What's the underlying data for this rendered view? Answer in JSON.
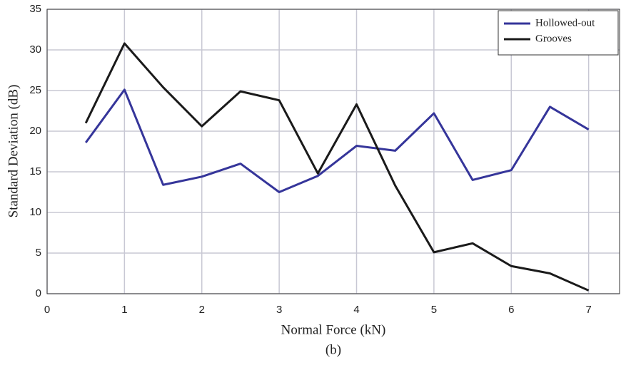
{
  "chart_data": {
    "type": "line",
    "x_label": "Normal Force (kN)",
    "y_label": "Standard Deviation (dB)",
    "caption": "(b)",
    "x": [
      0.5,
      1,
      1.5,
      2,
      2.5,
      3,
      3.5,
      4,
      4.5,
      5,
      5.5,
      6,
      6.5,
      7
    ],
    "series": [
      {
        "name": "Hollowed-out",
        "color": "#35359a",
        "values": [
          18.6,
          25.1,
          13.4,
          14.4,
          16.0,
          12.5,
          14.5,
          18.2,
          17.6,
          22.2,
          14.0,
          15.2,
          23.0,
          20.2
        ]
      },
      {
        "name": "Grooves",
        "color": "#1a1a1a",
        "values": [
          21.0,
          30.8,
          25.4,
          20.6,
          24.9,
          23.8,
          14.8,
          23.3,
          13.3,
          5.1,
          6.2,
          3.4,
          2.5,
          0.4
        ]
      }
    ],
    "xlim": [
      0,
      7.4
    ],
    "ylim": [
      0,
      35
    ],
    "xticks": [
      0,
      1,
      2,
      3,
      4,
      5,
      6,
      7
    ],
    "yticks": [
      0,
      5,
      10,
      15,
      20,
      25,
      30,
      35
    ],
    "grid": true,
    "legend": "top-right"
  }
}
